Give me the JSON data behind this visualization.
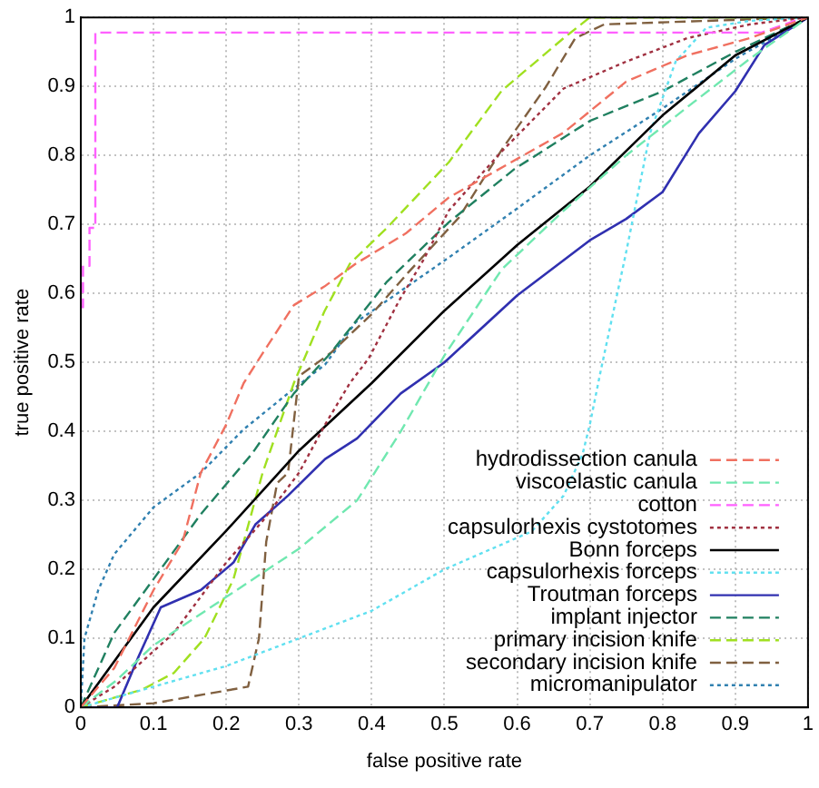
{
  "chart_data": {
    "type": "line",
    "xlabel": "false positive rate",
    "ylabel": "true positive rate",
    "xlim": [
      0,
      1
    ],
    "ylim": [
      0,
      1
    ],
    "xticks": [
      0,
      0.1,
      0.2,
      0.3,
      0.4,
      0.5,
      0.6,
      0.7,
      0.8,
      0.9,
      1
    ],
    "yticks": [
      0,
      0.1,
      0.2,
      0.3,
      0.4,
      0.5,
      0.6,
      0.7,
      0.8,
      0.9,
      1
    ],
    "grid": true,
    "legend": "bottom right",
    "marker": "none",
    "series": [
      {
        "name": "hydrodissection canula",
        "color": "#f07060",
        "line_style": "dashed",
        "x": [
          0,
          0.046,
          0.1,
          0.14,
          0.165,
          0.2,
          0.224,
          0.242,
          0.293,
          0.335,
          0.378,
          0.447,
          0.506,
          0.664,
          0.75,
          0.834,
          0.92,
          1
        ],
        "values": [
          0,
          0.057,
          0.17,
          0.24,
          0.34,
          0.41,
          0.47,
          0.5,
          0.583,
          0.61,
          0.643,
          0.687,
          0.739,
          0.833,
          0.907,
          0.945,
          0.97,
          1
        ]
      },
      {
        "name": "viscoelastic canula",
        "color": "#70e8b0",
        "line_style": "dashed",
        "x": [
          0,
          0.05,
          0.1,
          0.2,
          0.3,
          0.38,
          0.44,
          0.5,
          0.579,
          0.664,
          0.75,
          0.834,
          0.92,
          1
        ],
        "values": [
          0,
          0.04,
          0.09,
          0.16,
          0.23,
          0.3,
          0.4,
          0.51,
          0.635,
          0.72,
          0.8,
          0.87,
          0.94,
          1
        ]
      },
      {
        "name": "cotton",
        "color": "#ff60ff",
        "line_style": "dashed",
        "x": [
          0,
          0.003,
          0.003,
          0.012,
          0.012,
          0.02,
          0.02,
          0.936,
          0.987,
          1
        ],
        "values": [
          0.58,
          0.58,
          0.64,
          0.64,
          0.695,
          0.695,
          0.978,
          0.978,
          0.997,
          1
        ]
      },
      {
        "name": "capsulorhexis cystotomes",
        "color": "#a03040",
        "line_style": "dotted",
        "x": [
          0,
          0.046,
          0.128,
          0.2,
          0.25,
          0.3,
          0.336,
          0.37,
          0.396,
          0.438,
          0.472,
          0.506,
          0.579,
          0.664,
          0.75,
          0.834,
          0.92,
          1
        ],
        "values": [
          0,
          0.03,
          0.108,
          0.21,
          0.27,
          0.34,
          0.41,
          0.47,
          0.506,
          0.59,
          0.65,
          0.72,
          0.806,
          0.897,
          0.936,
          0.97,
          0.99,
          1
        ]
      },
      {
        "name": "Bonn forceps",
        "color": "#000000",
        "line_style": "solid",
        "x": [
          0,
          0.1,
          0.2,
          0.3,
          0.4,
          0.5,
          0.6,
          0.7,
          0.8,
          0.9,
          1
        ],
        "values": [
          0,
          0.145,
          0.256,
          0.372,
          0.47,
          0.575,
          0.67,
          0.755,
          0.858,
          0.945,
          1
        ]
      },
      {
        "name": "capsulorhexis forceps",
        "color": "#60e0f0",
        "line_style": "dotted",
        "x": [
          0,
          0.1,
          0.2,
          0.3,
          0.4,
          0.5,
          0.62,
          0.664,
          0.69,
          0.7,
          0.715,
          0.75,
          0.783,
          0.818,
          0.86,
          0.92,
          1
        ],
        "values": [
          0,
          0.03,
          0.06,
          0.1,
          0.14,
          0.2,
          0.255,
          0.307,
          0.367,
          0.41,
          0.488,
          0.66,
          0.833,
          0.936,
          0.985,
          0.995,
          1
        ]
      },
      {
        "name": "Troutman forceps",
        "color": "#3030b0",
        "line_style": "solid",
        "x": [
          0,
          0.05,
          0.08,
          0.11,
          0.165,
          0.21,
          0.24,
          0.285,
          0.336,
          0.38,
          0.44,
          0.5,
          0.6,
          0.7,
          0.75,
          0.8,
          0.85,
          0.9,
          0.94,
          1
        ],
        "values": [
          0,
          0,
          0.075,
          0.145,
          0.17,
          0.21,
          0.265,
          0.307,
          0.36,
          0.39,
          0.455,
          0.5,
          0.597,
          0.677,
          0.708,
          0.747,
          0.832,
          0.893,
          0.96,
          1
        ]
      },
      {
        "name": "implant injector",
        "color": "#208060",
        "line_style": "dashed",
        "x": [
          0,
          0.046,
          0.1,
          0.165,
          0.235,
          0.293,
          0.344,
          0.421,
          0.506,
          0.596,
          0.7,
          0.8,
          0.9,
          1
        ],
        "values": [
          0,
          0.108,
          0.186,
          0.28,
          0.367,
          0.455,
          0.514,
          0.617,
          0.703,
          0.78,
          0.85,
          0.893,
          0.95,
          1
        ]
      },
      {
        "name": "primary incision knife",
        "color": "#a0e020",
        "line_style": "dashed",
        "x": [
          0,
          0.085,
          0.128,
          0.17,
          0.21,
          0.25,
          0.293,
          0.335,
          0.37,
          0.421,
          0.506,
          0.579,
          0.664,
          0.7,
          1
        ],
        "values": [
          0,
          0.026,
          0.05,
          0.1,
          0.186,
          0.34,
          0.47,
          0.574,
          0.643,
          0.695,
          0.79,
          0.894,
          0.97,
          1,
          1
        ]
      },
      {
        "name": "secondary incision knife",
        "color": "#806040",
        "line_style": "dashed",
        "x": [
          0,
          0.1,
          0.23,
          0.245,
          0.255,
          0.27,
          0.285,
          0.3,
          0.344,
          0.4,
          0.45,
          0.52,
          0.58,
          0.64,
          0.68,
          0.72,
          1
        ],
        "values": [
          0,
          0.006,
          0.03,
          0.1,
          0.24,
          0.325,
          0.34,
          0.48,
          0.514,
          0.57,
          0.63,
          0.71,
          0.81,
          0.9,
          0.97,
          0.99,
          1
        ]
      },
      {
        "name": "micromanipulator",
        "color": "#3080b0",
        "line_style": "dotted",
        "x": [
          0,
          0.005,
          0.024,
          0.046,
          0.1,
          0.165,
          0.224,
          0.293,
          0.336,
          0.378,
          0.506,
          0.596,
          0.7,
          0.8,
          0.9,
          1
        ],
        "values": [
          0,
          0.1,
          0.17,
          0.222,
          0.29,
          0.34,
          0.403,
          0.462,
          0.497,
          0.558,
          0.652,
          0.72,
          0.8,
          0.868,
          0.94,
          1
        ]
      }
    ]
  }
}
